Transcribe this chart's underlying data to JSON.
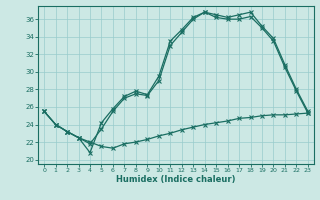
{
  "xlabel": "Humidex (Indice chaleur)",
  "bg_color": "#cce8e4",
  "line_color": "#1a6e62",
  "grid_color": "#99cccc",
  "xlim": [
    -0.5,
    23.5
  ],
  "ylim": [
    19.5,
    37.5
  ],
  "xticks": [
    0,
    1,
    2,
    3,
    4,
    5,
    6,
    7,
    8,
    9,
    10,
    11,
    12,
    13,
    14,
    15,
    16,
    17,
    18,
    19,
    20,
    21,
    22,
    23
  ],
  "yticks": [
    20,
    22,
    24,
    26,
    28,
    30,
    32,
    34,
    36
  ],
  "lines": [
    [
      25.5,
      24.0,
      23.2,
      22.5,
      22.0,
      21.5,
      21.3,
      21.8,
      22.0,
      22.3,
      22.7,
      23.0,
      23.4,
      23.7,
      24.0,
      24.2,
      24.4,
      24.7,
      24.8,
      25.0,
      25.1,
      25.1,
      25.2,
      25.3
    ],
    [
      25.5,
      24.0,
      23.2,
      22.5,
      21.8,
      23.5,
      25.5,
      27.0,
      27.5,
      27.3,
      29.0,
      33.0,
      34.5,
      36.0,
      36.8,
      36.2,
      36.0,
      36.0,
      36.3,
      35.0,
      33.5,
      30.5,
      27.8,
      25.3
    ],
    [
      25.5,
      24.0,
      23.2,
      22.5,
      20.8,
      24.2,
      25.8,
      27.2,
      27.8,
      27.4,
      29.5,
      33.5,
      34.8,
      36.2,
      36.8,
      36.5,
      36.2,
      36.5,
      36.8,
      35.2,
      33.8,
      30.8,
      28.0,
      25.5
    ]
  ]
}
